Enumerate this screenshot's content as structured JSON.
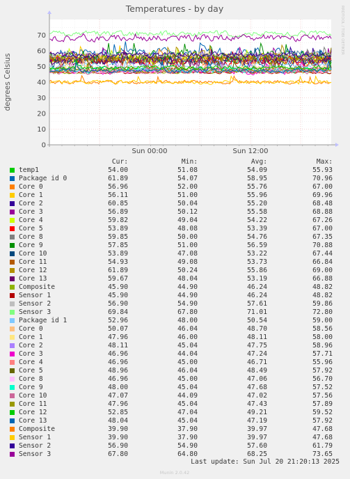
{
  "chart_data": {
    "type": "line",
    "title": "Temperatures - by day",
    "ylabel": "degrees Celsius",
    "ylim": [
      0,
      80
    ],
    "yticks": [
      "0",
      "10",
      "20",
      "30",
      "40",
      "50",
      "60",
      "70"
    ],
    "xticks": [
      "Sun 00:00",
      "Sun 12:00"
    ],
    "grid": true,
    "watermark": "RRDTOOL / TOBI OETIKER",
    "columns": [
      "Cur:",
      "Min:",
      "Avg:",
      "Max:"
    ],
    "series": [
      {
        "name": "temp1",
        "color": "#00cc00",
        "cur": "54.00",
        "min": "51.08",
        "avg": "54.09",
        "max": "55.93"
      },
      {
        "name": "Package id 0",
        "color": "#0066b3",
        "cur": "61.89",
        "min": "54.07",
        "avg": "58.95",
        "max": "70.96"
      },
      {
        "name": "Core 0",
        "color": "#ff8000",
        "cur": "56.96",
        "min": "52.00",
        "avg": "55.76",
        "max": "67.00"
      },
      {
        "name": "Core 1",
        "color": "#ffcc00",
        "cur": "56.11",
        "min": "51.00",
        "avg": "55.96",
        "max": "69.96"
      },
      {
        "name": "Core 2",
        "color": "#330099",
        "cur": "60.85",
        "min": "50.04",
        "avg": "55.20",
        "max": "68.48"
      },
      {
        "name": "Core 3",
        "color": "#990099",
        "cur": "56.89",
        "min": "50.12",
        "avg": "55.58",
        "max": "68.88"
      },
      {
        "name": "Core 4",
        "color": "#ccff00",
        "cur": "59.82",
        "min": "49.04",
        "avg": "54.22",
        "max": "67.26"
      },
      {
        "name": "Core 5",
        "color": "#ff0000",
        "cur": "53.89",
        "min": "48.08",
        "avg": "53.39",
        "max": "67.00"
      },
      {
        "name": "Core 8",
        "color": "#808080",
        "cur": "59.85",
        "min": "50.00",
        "avg": "54.76",
        "max": "67.35"
      },
      {
        "name": "Core 9",
        "color": "#008f00",
        "cur": "57.85",
        "min": "51.00",
        "avg": "56.59",
        "max": "70.88"
      },
      {
        "name": "Core 10",
        "color": "#00487d",
        "cur": "53.89",
        "min": "47.08",
        "avg": "53.22",
        "max": "67.44"
      },
      {
        "name": "Core 11",
        "color": "#b35a00",
        "cur": "54.93",
        "min": "49.08",
        "avg": "53.73",
        "max": "66.84"
      },
      {
        "name": "Core 12",
        "color": "#b38f00",
        "cur": "61.89",
        "min": "50.24",
        "avg": "55.86",
        "max": "69.00"
      },
      {
        "name": "Core 13",
        "color": "#6b006b",
        "cur": "59.67",
        "min": "48.04",
        "avg": "53.19",
        "max": "66.88"
      },
      {
        "name": "Composite",
        "color": "#8fb300",
        "cur": "45.90",
        "min": "44.90",
        "avg": "46.24",
        "max": "48.82"
      },
      {
        "name": "Sensor 1",
        "color": "#b30000",
        "cur": "45.90",
        "min": "44.90",
        "avg": "46.24",
        "max": "48.82"
      },
      {
        "name": "Sensor 2",
        "color": "#bebebe",
        "cur": "56.90",
        "min": "54.90",
        "avg": "57.61",
        "max": "59.86"
      },
      {
        "name": "Sensor 3",
        "color": "#80ff80",
        "cur": "69.84",
        "min": "67.80",
        "avg": "71.01",
        "max": "72.80"
      },
      {
        "name": "Package id 1",
        "color": "#80c9ff",
        "cur": "52.96",
        "min": "48.00",
        "avg": "50.54",
        "max": "59.00"
      },
      {
        "name": "Core 0",
        "color": "#ffc080",
        "cur": "50.07",
        "min": "46.04",
        "avg": "48.70",
        "max": "58.56"
      },
      {
        "name": "Core 1",
        "color": "#ffe680",
        "cur": "47.96",
        "min": "46.00",
        "avg": "48.11",
        "max": "58.00"
      },
      {
        "name": "Core 2",
        "color": "#aa80ff",
        "cur": "48.11",
        "min": "45.04",
        "avg": "47.75",
        "max": "58.96"
      },
      {
        "name": "Core 3",
        "color": "#ee00cc",
        "cur": "46.96",
        "min": "44.04",
        "avg": "47.24",
        "max": "57.71"
      },
      {
        "name": "Core 4",
        "color": "#ff8080",
        "cur": "46.96",
        "min": "45.00",
        "avg": "46.71",
        "max": "55.96"
      },
      {
        "name": "Core 5",
        "color": "#666600",
        "cur": "48.96",
        "min": "46.04",
        "avg": "48.49",
        "max": "57.92"
      },
      {
        "name": "Core 8",
        "color": "#ffbfff",
        "cur": "46.96",
        "min": "45.00",
        "avg": "47.06",
        "max": "56.70"
      },
      {
        "name": "Core 9",
        "color": "#00ffcc",
        "cur": "48.00",
        "min": "45.04",
        "avg": "47.68",
        "max": "57.52"
      },
      {
        "name": "Core 10",
        "color": "#cc6699",
        "cur": "47.07",
        "min": "44.09",
        "avg": "47.02",
        "max": "57.56"
      },
      {
        "name": "Core 11",
        "color": "#999900",
        "cur": "47.96",
        "min": "45.04",
        "avg": "47.43",
        "max": "57.89"
      },
      {
        "name": "Core 12",
        "color": "#00cc00",
        "cur": "52.85",
        "min": "47.04",
        "avg": "49.21",
        "max": "59.52"
      },
      {
        "name": "Core 13",
        "color": "#0066b3",
        "cur": "48.04",
        "min": "45.04",
        "avg": "47.19",
        "max": "57.92"
      },
      {
        "name": "Composite",
        "color": "#ff8000",
        "cur": "39.90",
        "min": "37.90",
        "avg": "39.97",
        "max": "47.68"
      },
      {
        "name": "Sensor 1",
        "color": "#ffcc00",
        "cur": "39.90",
        "min": "37.90",
        "avg": "39.97",
        "max": "47.68"
      },
      {
        "name": "Sensor 2",
        "color": "#330099",
        "cur": "56.90",
        "min": "54.90",
        "avg": "57.60",
        "max": "61.79"
      },
      {
        "name": "Sensor 3",
        "color": "#990099",
        "cur": "67.80",
        "min": "64.80",
        "avg": "68.25",
        "max": "73.65"
      }
    ]
  },
  "footer": {
    "last_update": "Last update: Sun Jul 20 21:20:13 2025",
    "version": "Munin 2.0.42"
  }
}
